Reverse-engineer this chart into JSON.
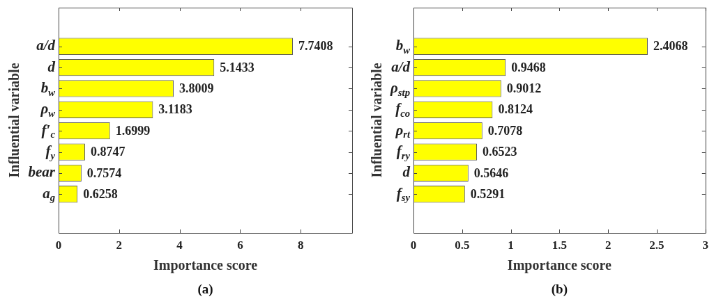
{
  "chart_data": [
    {
      "type": "bar",
      "orientation": "horizontal",
      "xlabel": "Importance score",
      "ylabel": "Influential variable",
      "categories": [
        "a/d",
        "d",
        "b$_{w}$",
        "ρ$_{w}$",
        "f′$_{c}$",
        "f$_{y}$",
        "bear",
        "a$_{g}$"
      ],
      "values": [
        7.7408,
        5.1433,
        3.8009,
        3.1183,
        1.6999,
        0.8747,
        0.7574,
        0.6258
      ],
      "color": "#ffff00",
      "xlim": [
        0,
        9.7
      ],
      "xticks": [
        0,
        2,
        4,
        6,
        8
      ],
      "data_labels": true,
      "grid": false,
      "legend": false,
      "annotations": [
        "(a)"
      ]
    },
    {
      "type": "bar",
      "orientation": "horizontal",
      "xlabel": "Importance score",
      "ylabel": "Influential variable",
      "categories": [
        "b$_{w}$",
        "a/d",
        "ρ$_{stp}$",
        "f$_{co}$",
        "ρ$_{rt}$",
        "f$_{ry}$",
        "d",
        "f$_{sy}$"
      ],
      "values": [
        2.4068,
        0.9468,
        0.9012,
        0.8124,
        0.7078,
        0.6523,
        0.5646,
        0.5291
      ],
      "color": "#ffff00",
      "xlim": [
        0,
        3
      ],
      "xticks": [
        0,
        0.5,
        1,
        1.5,
        2,
        2.5,
        3
      ],
      "data_labels": true,
      "grid": false,
      "legend": false,
      "annotations": [
        "(b)"
      ]
    }
  ]
}
